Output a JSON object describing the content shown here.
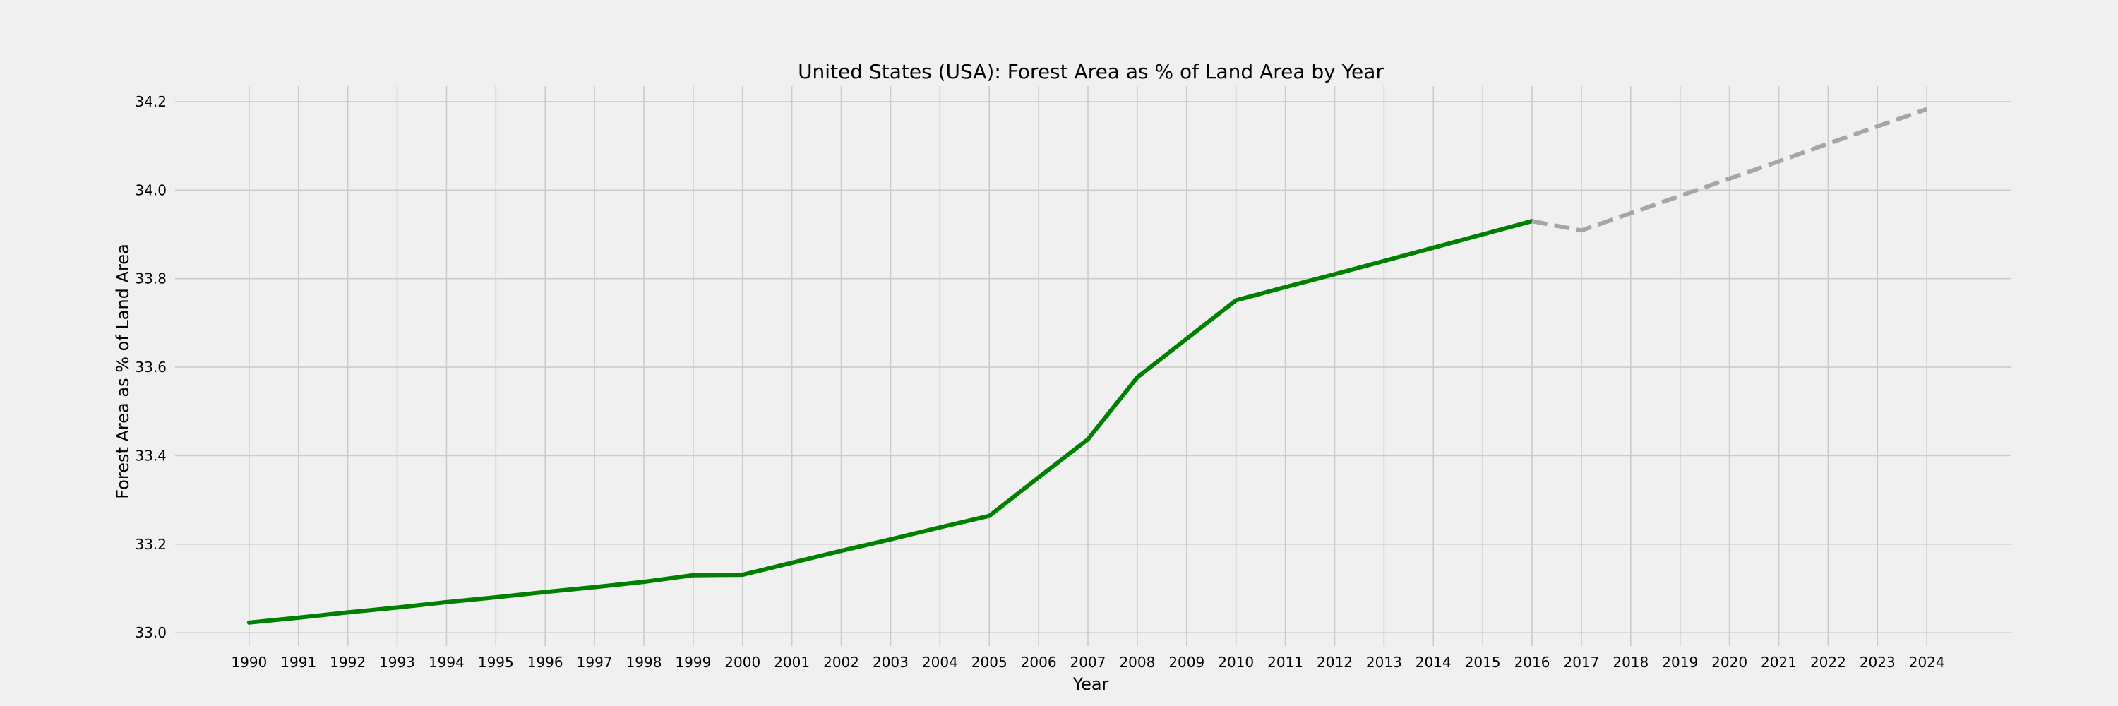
{
  "chart_data": {
    "type": "line",
    "title": "United States (USA): Forest Area as % of Land Area by Year",
    "xlabel": "Year",
    "ylabel": "Forest Area as % of Land Area",
    "xlim": [
      1988.5,
      2025.7
    ],
    "ylim": [
      32.97,
      34.235
    ],
    "x_ticks": [
      1990,
      1991,
      1992,
      1993,
      1994,
      1995,
      1996,
      1997,
      1998,
      1999,
      2000,
      2001,
      2002,
      2003,
      2004,
      2005,
      2006,
      2007,
      2008,
      2009,
      2010,
      2011,
      2012,
      2013,
      2014,
      2015,
      2016,
      2017,
      2018,
      2019,
      2020,
      2021,
      2022,
      2023,
      2024
    ],
    "y_ticks": [
      33.0,
      33.2,
      33.4,
      33.6,
      33.8,
      34.0,
      34.2
    ],
    "y_tick_labels": [
      "33.0",
      "33.2",
      "33.4",
      "33.6",
      "33.8",
      "34.0",
      "34.2"
    ],
    "grid": true,
    "colors": {
      "background": "#f0f0f0",
      "actual": "#008000",
      "forecast": "#a6a6a6"
    },
    "series": [
      {
        "style": "solid",
        "x": [
          1990,
          1991,
          1992,
          1993,
          1994,
          1995,
          1996,
          1997,
          1998,
          1999,
          2000,
          2001,
          2002,
          2003,
          2004,
          2005,
          2006,
          2007,
          2008,
          2009,
          2010,
          2011,
          2012,
          2013,
          2014,
          2015,
          2016
        ],
        "y": [
          33.023,
          33.034,
          33.046,
          33.057,
          33.069,
          33.08,
          33.092,
          33.103,
          33.115,
          33.13,
          33.131,
          33.158,
          33.185,
          33.211,
          33.238,
          33.264,
          33.351,
          33.437,
          33.577,
          33.664,
          33.751,
          33.781,
          33.81,
          33.84,
          33.87,
          33.9,
          33.93
        ]
      },
      {
        "style": "dashed",
        "x": [
          2016,
          2017,
          2018,
          2019,
          2020,
          2021,
          2022,
          2023,
          2024
        ],
        "y": [
          33.93,
          33.909,
          33.948,
          33.987,
          34.026,
          34.065,
          34.105,
          34.144,
          34.183
        ]
      }
    ]
  }
}
